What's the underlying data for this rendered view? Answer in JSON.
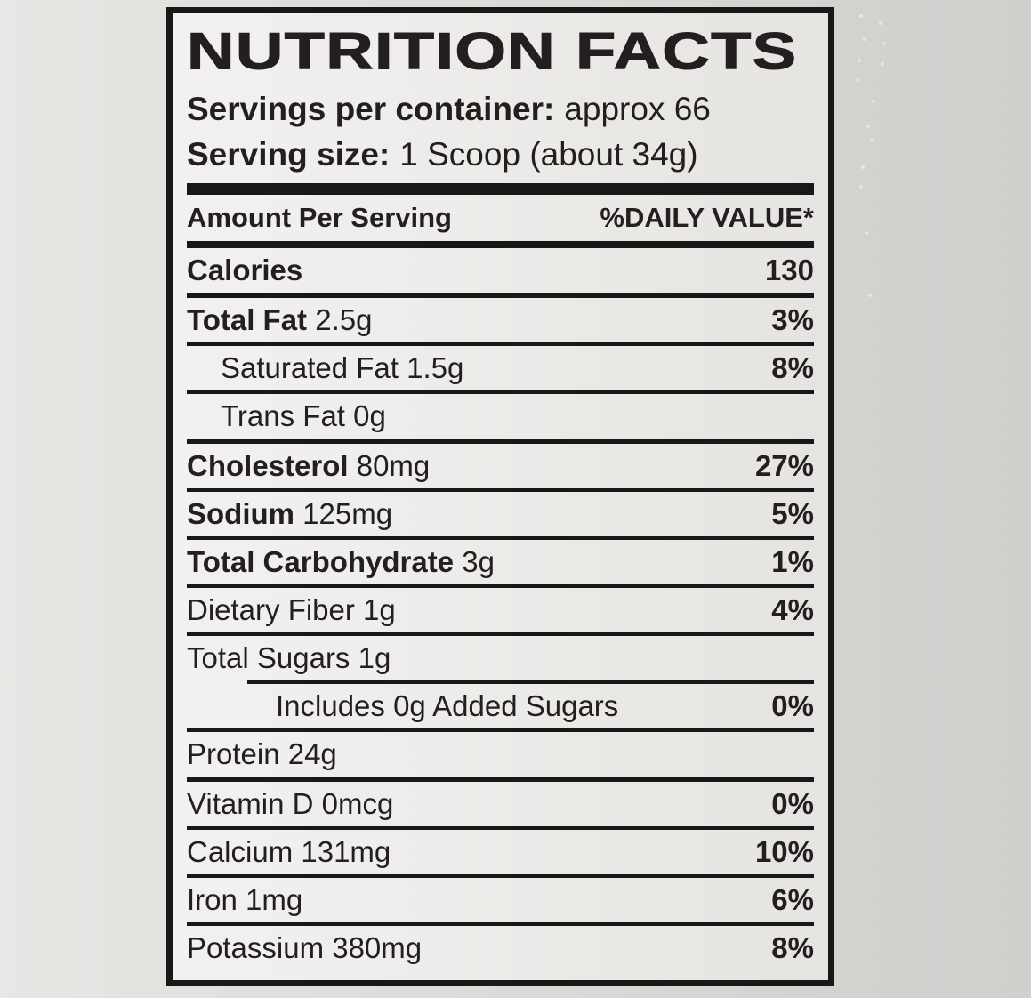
{
  "label": {
    "title": "NUTRITION FACTS",
    "servings_per_container": {
      "label": "Servings per container:",
      "value": "approx 66"
    },
    "serving_size": {
      "label": "Serving size:",
      "value": "1 Scoop (about 34g)"
    },
    "header": {
      "left": "Amount Per Serving",
      "right": "%DAILY VALUE*"
    },
    "rows": [
      {
        "name": "Calories",
        "amount": "",
        "dv": "130",
        "bold": true,
        "indent": 0,
        "sep": "medium"
      },
      {
        "name": "Total Fat",
        "amount": "2.5g",
        "dv": "3%",
        "bold": true,
        "indent": 0,
        "sep": "normal"
      },
      {
        "name": "Saturated Fat",
        "amount": "1.5g",
        "dv": "8%",
        "bold": false,
        "indent": 1,
        "sep": "normal"
      },
      {
        "name": "Trans Fat",
        "amount": "0g",
        "dv": "",
        "bold": false,
        "indent": 1,
        "sep": "medium"
      },
      {
        "name": "Cholesterol",
        "amount": "80mg",
        "dv": "27%",
        "bold": true,
        "indent": 0,
        "sep": "normal"
      },
      {
        "name": "Sodium",
        "amount": "125mg",
        "dv": "5%",
        "bold": true,
        "indent": 0,
        "sep": "normal"
      },
      {
        "name": "Total Carbohydrate",
        "amount": "3g",
        "dv": "1%",
        "bold": true,
        "indent": 0,
        "sep": "normal"
      },
      {
        "name": "Dietary Fiber",
        "amount": "1g",
        "dv": "4%",
        "bold": false,
        "indent": 0,
        "sep": "normal"
      },
      {
        "name": "Total Sugars",
        "amount": "1g",
        "dv": "",
        "bold": false,
        "indent": 0,
        "sep": "indented"
      },
      {
        "name": "Includes 0g Added Sugars",
        "amount": "",
        "dv": "0%",
        "bold": false,
        "indent": 2,
        "sep": "normal"
      },
      {
        "name": "Protein",
        "amount": "24g",
        "dv": "",
        "bold": false,
        "indent": 0,
        "sep": "medium"
      },
      {
        "name": "Vitamin D",
        "amount": "0mcg",
        "dv": "0%",
        "bold": false,
        "indent": 0,
        "sep": "normal"
      },
      {
        "name": "Calcium",
        "amount": "131mg",
        "dv": "10%",
        "bold": false,
        "indent": 0,
        "sep": "normal"
      },
      {
        "name": "Iron",
        "amount": "1mg",
        "dv": "6%",
        "bold": false,
        "indent": 0,
        "sep": "normal"
      },
      {
        "name": "Potassium",
        "amount": "380mg",
        "dv": "8%",
        "bold": false,
        "indent": 0,
        "sep": "none"
      }
    ],
    "colors": {
      "text": "#231f20",
      "rule": "#1a1718",
      "label_bg": "#eeedeb",
      "page_bg_left": "#e8e7e5",
      "page_bg_right": "#d1cfcc"
    }
  }
}
